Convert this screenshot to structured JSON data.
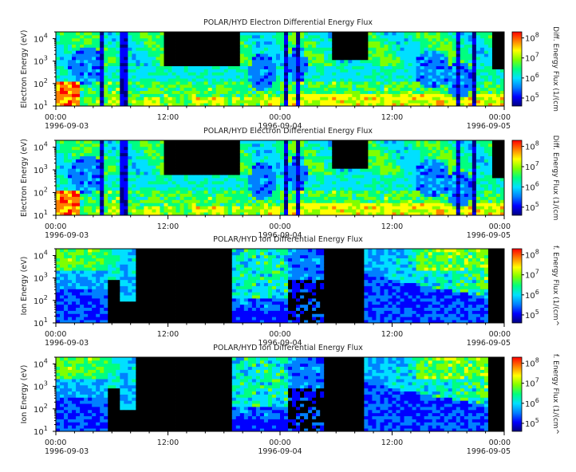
{
  "chart_data": [
    {
      "type": "heatmap",
      "title": "POLAR/HYD  Electron Differential Energy Flux",
      "ylabel": "Electron Energy (eV)",
      "colorbar_label": "Diff. Energy Flux (1/(cm",
      "yscale": "log",
      "ylim": [
        10,
        20000
      ],
      "y_ticks": [
        "10",
        "10",
        "10",
        "10"
      ],
      "y_tick_exps": [
        "1",
        "2",
        "3",
        "4"
      ],
      "x_ticks": [
        {
          "time": "00:00",
          "date": "1996-09-03"
        },
        {
          "time": "12:00",
          "date": ""
        },
        {
          "time": "00:00",
          "date": "1996-09-04"
        },
        {
          "time": "12:00",
          "date": ""
        },
        {
          "time": "00:00",
          "date": "1996-09-05"
        }
      ],
      "colorbar_ticks": [
        "10",
        "10",
        "10",
        "10"
      ],
      "colorbar_exps": [
        "5",
        "6",
        "7",
        "8"
      ],
      "colormap": [
        "#000080",
        "#0000ff",
        "#0080ff",
        "#00e0ff",
        "#00ff80",
        "#7fff00",
        "#ffff00",
        "#ff8000",
        "#ff0000"
      ]
    },
    {
      "type": "heatmap",
      "title": "POLAR/HYD  Electron Differential Energy Flux",
      "ylabel": "Electron Energy (eV)",
      "colorbar_label": "Diff. Energy Flux (1/(cm",
      "yscale": "log",
      "ylim": [
        10,
        20000
      ],
      "y_ticks": [
        "10",
        "10",
        "10",
        "10"
      ],
      "y_tick_exps": [
        "1",
        "2",
        "3",
        "4"
      ],
      "x_ticks": [
        {
          "time": "00:00",
          "date": "1996-09-03"
        },
        {
          "time": "12:00",
          "date": ""
        },
        {
          "time": "00:00",
          "date": "1996-09-04"
        },
        {
          "time": "12:00",
          "date": ""
        },
        {
          "time": "00:00",
          "date": "1996-09-05"
        }
      ],
      "colorbar_ticks": [
        "10",
        "10",
        "10",
        "10"
      ],
      "colorbar_exps": [
        "5",
        "6",
        "7",
        "8"
      ],
      "colormap": [
        "#000080",
        "#0000ff",
        "#0080ff",
        "#00e0ff",
        "#00ff80",
        "#7fff00",
        "#ffff00",
        "#ff8000",
        "#ff0000"
      ]
    },
    {
      "type": "heatmap",
      "title": "POLAR/HYD  Ion Differential Energy Flux",
      "ylabel": "Ion Energy (eV)",
      "colorbar_label": "f. Energy Flux (1/(cm^",
      "yscale": "log",
      "ylim": [
        10,
        20000
      ],
      "y_ticks": [
        "10",
        "10",
        "10",
        "10"
      ],
      "y_tick_exps": [
        "1",
        "2",
        "3",
        "4"
      ],
      "x_ticks": [
        {
          "time": "00:00",
          "date": "1996-09-03"
        },
        {
          "time": "12:00",
          "date": ""
        },
        {
          "time": "00:00",
          "date": "1996-09-04"
        },
        {
          "time": "12:00",
          "date": ""
        },
        {
          "time": "00:00",
          "date": "1996-09-05"
        }
      ],
      "colorbar_ticks": [
        "10",
        "10",
        "10",
        "10"
      ],
      "colorbar_exps": [
        "5",
        "6",
        "7",
        "8"
      ],
      "colormap": [
        "#000080",
        "#0000ff",
        "#0080ff",
        "#00e0ff",
        "#00ff80",
        "#7fff00",
        "#ffff00",
        "#ff8000",
        "#ff0000"
      ]
    },
    {
      "type": "heatmap",
      "title": "POLAR/HYD  Ion Differential Energy Flux",
      "ylabel": "Ion Energy (eV)",
      "colorbar_label": "f. Energy Flux (1/(cm^",
      "yscale": "log",
      "ylim": [
        10,
        20000
      ],
      "y_ticks": [
        "10",
        "10",
        "10",
        "10"
      ],
      "y_tick_exps": [
        "1",
        "2",
        "3",
        "4"
      ],
      "x_ticks": [
        {
          "time": "00:00",
          "date": "1996-09-03"
        },
        {
          "time": "12:00",
          "date": ""
        },
        {
          "time": "00:00",
          "date": "1996-09-04"
        },
        {
          "time": "12:00",
          "date": ""
        },
        {
          "time": "00:00",
          "date": "1996-09-05"
        }
      ],
      "colorbar_ticks": [
        "10",
        "10",
        "10",
        "10"
      ],
      "colorbar_exps": [
        "5",
        "6",
        "7",
        "8"
      ],
      "colormap": [
        "#000080",
        "#0000ff",
        "#0080ff",
        "#00e0ff",
        "#00ff80",
        "#7fff00",
        "#ffff00",
        "#ff8000",
        "#ff0000"
      ]
    }
  ]
}
